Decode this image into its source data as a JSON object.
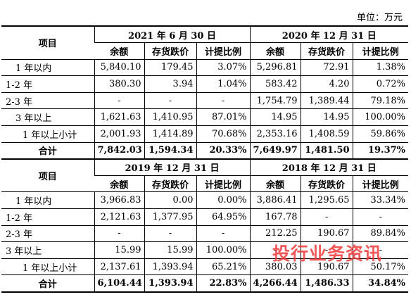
{
  "unit_label": "单位：万元",
  "item_header": "项目",
  "sub_headers": [
    "余额",
    "存货跌价",
    "计提比例"
  ],
  "watermark": "投行业务资讯",
  "sections": [
    {
      "periods": [
        "2021 年 6 月 30 日",
        "2020 年 12 月 31 日"
      ],
      "rows": [
        {
          "label": "1 年以内",
          "indent": 1,
          "cells": [
            "5,840.10",
            "179.45",
            "3.07%",
            "5,296.81",
            "72.91",
            "1.38%"
          ]
        },
        {
          "label": "1-2 年",
          "indent": 0,
          "cells": [
            "380.30",
            "3.94",
            "1.04%",
            "583.42",
            "4.20",
            "0.72%"
          ]
        },
        {
          "label": "2-3 年",
          "indent": 0,
          "cells": [
            "-",
            "-",
            "-",
            "1,754.79",
            "1,389.44",
            "79.18%"
          ]
        },
        {
          "label": "3 年以上",
          "indent": 1,
          "cells": [
            "1,621.63",
            "1,410.95",
            "87.01%",
            "14.95",
            "14.95",
            "100.00%"
          ]
        },
        {
          "label": "1 年以上小计",
          "indent": 2,
          "cells": [
            "2,001.93",
            "1,414.89",
            "70.68%",
            "2,353.16",
            "1,408.59",
            "59.86%"
          ]
        }
      ],
      "total": {
        "label": "合计",
        "cells": [
          "7,842.03",
          "1,594.34",
          "20.33%",
          "7,649.97",
          "1,481.50",
          "19.37%"
        ]
      }
    },
    {
      "periods": [
        "2019 年 12 月 31 日",
        "2018 年 12 月 31 日"
      ],
      "rows": [
        {
          "label": "1 年以内",
          "indent": 1,
          "cells": [
            "3,966.83",
            "0.00",
            "0.00%",
            "3,886.41",
            "1,295.65",
            "33.34%"
          ]
        },
        {
          "label": "1-2 年",
          "indent": 0,
          "cells": [
            "2,121.63",
            "1,377.95",
            "64.95%",
            "167.78",
            "-",
            "-"
          ]
        },
        {
          "label": "2-3 年",
          "indent": 0,
          "cells": [
            "-",
            "-",
            "-",
            "212.25",
            "190.67",
            "89.84%"
          ]
        },
        {
          "label": "3 年以上",
          "indent": 0,
          "cells": [
            "15.99",
            "15.99",
            "100.00%",
            "-",
            "-",
            "-"
          ]
        },
        {
          "label": "1 年以上小计",
          "indent": 2,
          "cells": [
            "2,137.61",
            "1,393.94",
            "65.21%",
            "380.03",
            "190.67",
            "50.17%"
          ]
        }
      ],
      "total": {
        "label": "合计",
        "cells": [
          "6,104.44",
          "1,393.94",
          "22.83%",
          "4,266.44",
          "1,486.33",
          "34.84%"
        ]
      }
    }
  ]
}
